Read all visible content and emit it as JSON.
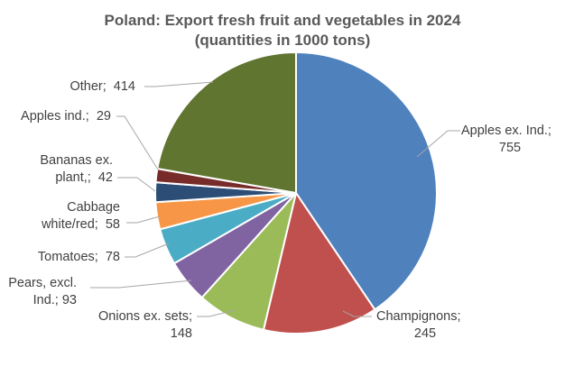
{
  "chart_data": {
    "type": "pie",
    "title_lines": [
      "Poland: Export fresh fruit and vegetables in 2024",
      "(quantities in 1000 tons)"
    ],
    "start_angle_deg": 0,
    "direction": "clockwise",
    "legend": "none",
    "slices": [
      {
        "label_lines": [
          "Apples ex. Ind.;",
          "755"
        ],
        "value": 755,
        "color": "#4f81bd"
      },
      {
        "label_lines": [
          "Champignons;",
          "245"
        ],
        "value": 245,
        "color": "#c0504d"
      },
      {
        "label_lines": [
          "Onions ex. sets;",
          "148"
        ],
        "value": 148,
        "color": "#9bbb59"
      },
      {
        "label_lines": [
          "Pears, excl.",
          "Ind.; 93"
        ],
        "value": 93,
        "color": "#8064a2"
      },
      {
        "label_lines": [
          "Tomatoes;  78"
        ],
        "value": 78,
        "color": "#4bacc6"
      },
      {
        "label_lines": [
          "Cabbage",
          "white/red;  58"
        ],
        "value": 58,
        "color": "#f79646"
      },
      {
        "label_lines": [
          "Bananas ex.",
          "plant,;  42"
        ],
        "value": 42,
        "color": "#2c4d75"
      },
      {
        "label_lines": [
          "Apples ind.;  29"
        ],
        "value": 29,
        "color": "#772c2a"
      },
      {
        "label_lines": [
          "Other;  414"
        ],
        "value": 414,
        "color": "#5f7530"
      }
    ]
  }
}
